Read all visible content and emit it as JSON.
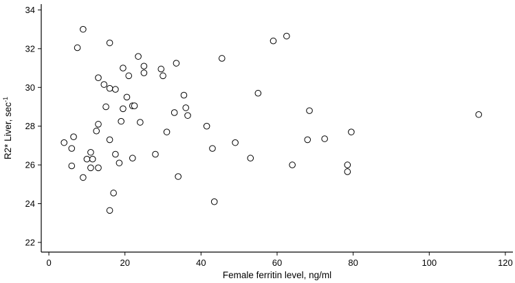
{
  "chart_data": {
    "type": "scatter",
    "title": "",
    "xlabel": "Female ferritin level, ng/ml",
    "ylabel": "R2* Liver, sec",
    "ylabel_superscript": "-1",
    "xlim": [
      -2,
      122
    ],
    "ylim": [
      21.5,
      34.3
    ],
    "xticks": [
      0,
      20,
      40,
      60,
      80,
      100,
      120
    ],
    "yticks": [
      22,
      24,
      26,
      28,
      30,
      32,
      34
    ],
    "grid": false,
    "legend": "none",
    "marker": "open-circle",
    "points": [
      [
        9,
        33.0
      ],
      [
        7.5,
        32.05
      ],
      [
        16,
        32.3
      ],
      [
        62.5,
        32.65
      ],
      [
        59,
        32.4
      ],
      [
        23.5,
        31.6
      ],
      [
        25,
        31.1
      ],
      [
        19.5,
        31.0
      ],
      [
        29.5,
        30.95
      ],
      [
        33.5,
        31.25
      ],
      [
        45.5,
        31.5
      ],
      [
        25,
        30.75
      ],
      [
        21,
        30.6
      ],
      [
        30,
        30.6
      ],
      [
        13,
        30.5
      ],
      [
        14.5,
        30.15
      ],
      [
        16,
        29.95
      ],
      [
        17.5,
        29.9
      ],
      [
        55,
        29.7
      ],
      [
        35.5,
        29.6
      ],
      [
        20.5,
        29.5
      ],
      [
        15,
        29.0
      ],
      [
        22,
        29.05
      ],
      [
        22.5,
        29.05
      ],
      [
        19.5,
        28.9
      ],
      [
        36,
        28.95
      ],
      [
        33,
        28.7
      ],
      [
        36.5,
        28.55
      ],
      [
        68.5,
        28.8
      ],
      [
        113,
        28.6
      ],
      [
        19,
        28.25
      ],
      [
        24,
        28.2
      ],
      [
        13,
        28.1
      ],
      [
        41.5,
        28.0
      ],
      [
        12.5,
        27.75
      ],
      [
        31,
        27.7
      ],
      [
        79.5,
        27.7
      ],
      [
        6.5,
        27.45
      ],
      [
        16,
        27.3
      ],
      [
        68,
        27.3
      ],
      [
        72.5,
        27.35
      ],
      [
        4,
        27.15
      ],
      [
        49,
        27.15
      ],
      [
        6,
        26.85
      ],
      [
        43,
        26.85
      ],
      [
        11,
        26.65
      ],
      [
        17.5,
        26.55
      ],
      [
        28,
        26.55
      ],
      [
        11.5,
        26.3
      ],
      [
        10,
        26.3
      ],
      [
        22,
        26.35
      ],
      [
        53,
        26.35
      ],
      [
        18.5,
        26.1
      ],
      [
        6,
        25.95
      ],
      [
        11,
        25.85
      ],
      [
        13,
        25.85
      ],
      [
        64,
        26.0
      ],
      [
        78.5,
        26.0
      ],
      [
        78.5,
        25.65
      ],
      [
        9,
        25.35
      ],
      [
        34,
        25.4
      ],
      [
        17,
        24.55
      ],
      [
        43.5,
        24.1
      ],
      [
        16,
        23.65
      ]
    ]
  }
}
